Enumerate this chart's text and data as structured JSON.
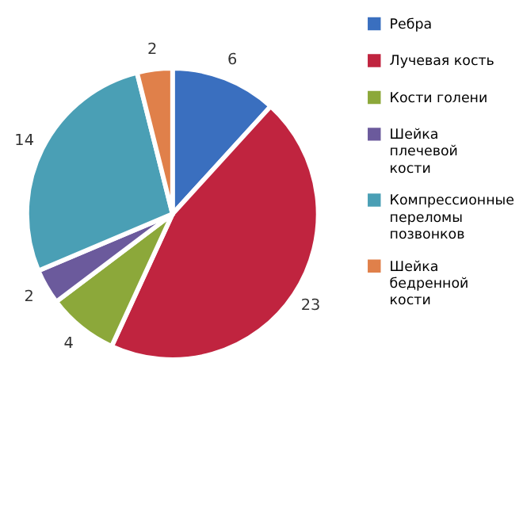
{
  "chart_data": {
    "type": "pie",
    "categories": [
      "Ребра",
      "Лучевая кость",
      "Кости голени",
      "Шейка плечевой кости",
      "Компрессионные переломы позвонков",
      "Шейка бедренной кости"
    ],
    "values": [
      6,
      23,
      4,
      2,
      14,
      2
    ],
    "colors": [
      "#3a6fbf",
      "#c0243f",
      "#8ca83a",
      "#6b5a9c",
      "#4a9fb5",
      "#e0804a"
    ],
    "data_labels": true,
    "legend": "right"
  }
}
